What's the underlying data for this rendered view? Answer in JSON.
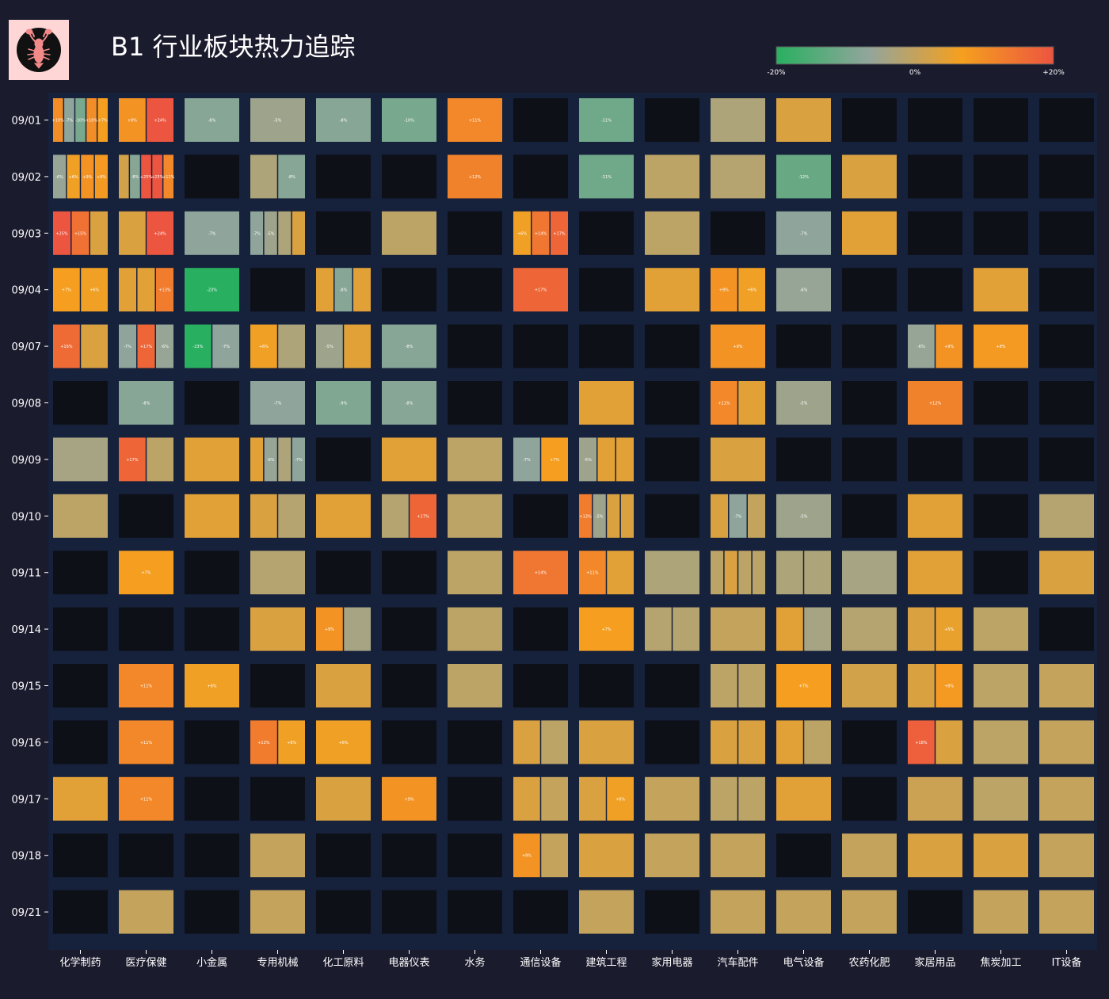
{
  "header": {
    "title": "B1 行业板块热力追踪",
    "logo_icon": "lobster-icon",
    "logo_bg": "#ffd6d6"
  },
  "colorbar": {
    "min_label": "-20%",
    "mid_label": "0%",
    "max_label": "+20%",
    "stops": [
      "#28b060",
      "#92a59c",
      "#f5a01e",
      "#ec5540"
    ]
  },
  "theme": {
    "background": "#1b1b2e",
    "panel": "#16213c",
    "empty_cell": "#0e1017",
    "text": "#ffffff"
  },
  "chart_data": {
    "type": "heatmap",
    "title": "B1 行业板块热力追踪",
    "xlabel": "",
    "ylabel": "",
    "color_range": [
      -20,
      20
    ],
    "columns": [
      "化学制药",
      "医疗保健",
      "小金属",
      "专用机械",
      "化工原料",
      "电器仪表",
      "水务",
      "通信设备",
      "建筑工程",
      "家用电器",
      "汽车配件",
      "电气设备",
      "农药化肥",
      "家居用品",
      "焦炭加工",
      "IT设备"
    ],
    "rows": [
      "09/01",
      "09/02",
      "09/03",
      "09/04",
      "09/07",
      "09/08",
      "09/09",
      "09/10",
      "09/11",
      "09/14",
      "09/15",
      "09/16",
      "09/17",
      "09/18",
      "09/21"
    ],
    "cells": [
      [
        [
          10,
          -7,
          -10,
          10,
          7
        ],
        [
          9,
          24
        ],
        [
          -8
        ],
        [
          -5
        ],
        [
          -8
        ],
        [
          -10
        ],
        [
          11
        ],
        [],
        [
          -11
        ],
        [],
        [
          -3
        ],
        [
          3
        ],
        [],
        [],
        [],
        []
      ],
      [
        [
          -6,
          6,
          9,
          8
        ],
        [
          2,
          -8,
          25,
          23,
          11
        ],
        [],
        [
          -3,
          -8
        ],
        [],
        [],
        [
          12
        ],
        [],
        [
          -11
        ],
        [
          -1
        ],
        [
          -2
        ],
        [
          -12
        ],
        [
          3
        ],
        [],
        [],
        []
      ],
      [
        [
          25,
          15,
          3
        ],
        [
          3,
          24
        ],
        [
          -7
        ],
        [
          -7,
          -5,
          -3,
          3
        ],
        [],
        [
          -1
        ],
        [],
        [
          6,
          14,
          17
        ],
        [],
        [
          -1
        ],
        [],
        [
          -7
        ],
        [
          4
        ],
        [],
        [],
        []
      ],
      [
        [
          7,
          6
        ],
        [
          4,
          4,
          13
        ],
        [
          -23
        ],
        [],
        [
          4,
          -8,
          4
        ],
        [],
        [],
        [
          17
        ],
        [],
        [
          4
        ],
        [
          9,
          6
        ],
        [
          -6
        ],
        [],
        [],
        [
          4
        ],
        []
      ],
      [
        [
          16,
          3
        ],
        [
          -7,
          17,
          -6
        ],
        [
          -23,
          -7
        ],
        [
          6,
          -3
        ],
        [
          -5,
          4
        ],
        [
          -8
        ],
        [],
        [],
        [],
        [],
        [
          9
        ],
        [],
        [],
        [
          -6,
          9
        ],
        [
          8
        ],
        []
      ],
      [
        [],
        [
          -8
        ],
        [],
        [
          -7
        ],
        [
          -9
        ],
        [
          -8
        ],
        [],
        [],
        [
          4
        ],
        [],
        [
          11,
          4
        ],
        [
          -5
        ],
        [],
        [
          12
        ],
        [],
        []
      ],
      [
        [
          -4
        ],
        [
          17,
          -1
        ],
        [
          4
        ],
        [
          4,
          -6,
          -3,
          -7
        ],
        [],
        [
          4
        ],
        [
          -1
        ],
        [
          -7,
          7
        ],
        [
          -5,
          4,
          4
        ],
        [],
        [
          3
        ],
        [],
        [],
        [],
        [],
        []
      ],
      [
        [
          -1
        ],
        [],
        [
          4
        ],
        [
          3,
          -2
        ],
        [
          4
        ],
        [
          -2,
          17
        ],
        [
          -1
        ],
        [],
        [
          13,
          -5,
          3,
          3
        ],
        [],
        [
          3,
          -7,
          0
        ],
        [
          -5
        ],
        [],
        [
          4
        ],
        [],
        [
          -2
        ]
      ],
      [
        [],
        [
          7
        ],
        [],
        [
          -2
        ],
        [],
        [],
        [
          -1
        ],
        [
          14
        ],
        [
          11,
          4
        ],
        [
          -3
        ],
        [
          -1,
          3,
          -1,
          -1
        ],
        [
          -3,
          -3
        ],
        [
          -4
        ],
        [
          4
        ],
        [],
        [
          3
        ]
      ],
      [
        [],
        [],
        [],
        [
          3
        ],
        [
          9,
          -4
        ],
        [],
        [
          -1
        ],
        [],
        [
          7
        ],
        [
          -2,
          -2
        ],
        [
          0
        ],
        [
          4,
          -4
        ],
        [
          -2
        ],
        [
          3,
          5
        ],
        [
          -1
        ],
        []
      ],
      [
        [],
        [
          11
        ],
        [
          6
        ],
        [],
        [
          3
        ],
        [],
        [
          -1
        ],
        [],
        [],
        [],
        [
          -1,
          -1
        ],
        [
          7
        ],
        [
          2
        ],
        [
          3,
          8
        ],
        [
          -1
        ],
        [
          0
        ]
      ],
      [
        [],
        [
          11
        ],
        [],
        [
          13,
          6
        ],
        [
          6
        ],
        [],
        [],
        [
          3,
          -1
        ],
        [
          3
        ],
        [],
        [
          3,
          3
        ],
        [
          4,
          -1
        ],
        [],
        [
          18,
          3
        ],
        [
          -1
        ],
        [
          0
        ]
      ],
      [
        [
          4
        ],
        [
          11
        ],
        [],
        [],
        [
          3
        ],
        [
          9
        ],
        [],
        [
          3,
          0
        ],
        [
          3,
          6
        ],
        [
          0
        ],
        [
          -1,
          -1
        ],
        [
          4
        ],
        [],
        [
          1
        ],
        [
          -1
        ],
        [
          0
        ]
      ],
      [
        [],
        [],
        [],
        [
          0
        ],
        [],
        [],
        [],
        [
          9,
          0
        ],
        [
          3
        ],
        [
          0
        ],
        [
          0
        ],
        [],
        [
          0
        ],
        [
          3
        ],
        [
          3
        ],
        [
          0
        ]
      ],
      [
        [],
        [
          0
        ],
        [],
        [
          0
        ],
        [],
        [],
        [],
        [],
        [
          0
        ],
        [],
        [
          0
        ],
        [
          0
        ],
        [
          0
        ],
        [],
        [
          0
        ],
        [
          0
        ]
      ]
    ],
    "label_threshold": 5,
    "grid": false,
    "legend": "top-right colorbar"
  }
}
